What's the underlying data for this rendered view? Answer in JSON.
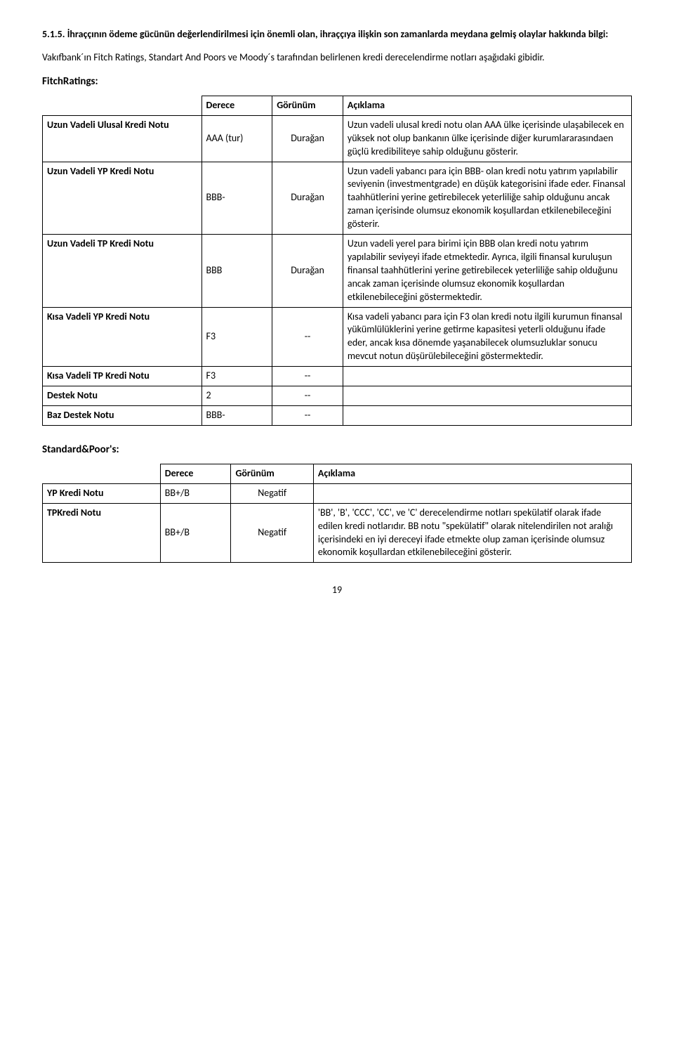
{
  "intro": {
    "heading_num": "5.1.5.",
    "heading_text": "İhraççının ödeme gücünün değerlendirilmesi için önemli olan, ihraççıya ilişkin son zamanlarda meydana gelmiş olaylar hakkında bilgi:",
    "body": "Vakıfbank´ın Fitch Ratings, Standart And Poors ve Moody´s tarafından belirlenen kredi derecelendirme notları aşağıdaki gibidir."
  },
  "fitch": {
    "title": "FitchRatings:",
    "header_grade": "Derece",
    "header_outlook": "Görünüm",
    "header_desc": "Açıklama",
    "rows": [
      {
        "label": "Uzun Vadeli Ulusal Kredi Notu",
        "grade": "AAA (tur)",
        "outlook": "Durağan",
        "desc": "Uzun vadeli ulusal kredi notu olan AAA ülke içerisinde ulaşabilecek en yüksek not olup bankanın ülke içerisinde diğer kurumlararasındaen güçlü kredibiliteye sahip olduğunu gösterir."
      },
      {
        "label": "Uzun Vadeli YP Kredi Notu",
        "grade": "BBB-",
        "outlook": "Durağan",
        "desc": "Uzun vadeli yabancı para için BBB- olan kredi notu yatırım yapılabilir seviyenin (investmentgrade) en düşük kategorisini ifade eder. Finansal taahhütlerini yerine getirebilecek yeterliliğe sahip olduğunu ancak zaman içerisinde olumsuz ekonomik koşullardan etkilenebileceğini gösterir."
      },
      {
        "label": "Uzun Vadeli TP Kredi Notu",
        "grade": "BBB",
        "outlook": "Durağan",
        "desc": "Uzun vadeli yerel para birimi için BBB olan kredi notu yatırım yapılabilir seviyeyi ifade etmektedir. Ayrıca, ilgili finansal kuruluşun finansal taahhütlerini yerine getirebilecek yeterliliğe sahip olduğunu ancak zaman içerisinde olumsuz ekonomik koşullardan etkilenebileceğini göstermektedir."
      },
      {
        "label": "Kısa Vadeli YP Kredi Notu",
        "grade": "F3",
        "outlook": "--",
        "desc": "Kısa vadeli yabancı para için F3 olan kredi notu ilgili kurumun finansal yükümlülüklerini yerine getirme kapasitesi yeterli olduğunu ifade eder, ancak kısa dönemde yaşanabilecek olumsuzluklar sonucu mevcut notun düşürülebileceğini göstermektedir."
      },
      {
        "label": "Kısa Vadeli TP Kredi Notu",
        "grade": "F3",
        "outlook": "--",
        "desc": ""
      },
      {
        "label": "Destek Notu",
        "grade": "2",
        "outlook": "--",
        "desc": ""
      },
      {
        "label": "Baz Destek Notu",
        "grade": "BBB-",
        "outlook": "--",
        "desc": ""
      }
    ]
  },
  "sp": {
    "title": "Standard&Poor's:",
    "header_grade": "Derece",
    "header_outlook": "Görünüm",
    "header_desc": "Açıklama",
    "rows": [
      {
        "label": "YP Kredi Notu",
        "grade": "BB+/B",
        "outlook": "Negatif",
        "desc": ""
      },
      {
        "label": "TPKredi Notu",
        "grade": "BB+/B",
        "outlook": "Negatif",
        "desc": "'BB', 'B', 'CCC', 'CC', ve 'C' derecelendirme notları spekülatif olarak ifade edilen kredi notlarıdır. BB notu \"spekülatif\" olarak nitelendirilen not aralığı içerisindeki en iyi dereceyi ifade etmekte olup zaman içerisinde olumsuz ekonomik koşullardan etkilenebileceğini gösterir."
      }
    ]
  },
  "page_number": "19"
}
